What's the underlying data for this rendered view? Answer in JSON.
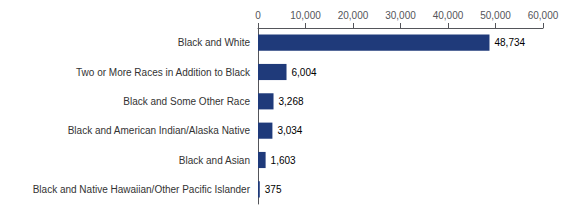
{
  "chart_data": {
    "type": "bar",
    "orientation": "horizontal",
    "categories": [
      "Black and Native Hawaiian/Other Pacific Islander",
      "Black and Asian",
      "Black and American Indian/Alaska Native",
      "Black and Some Other Race",
      "Two or More Races in Addition to Black",
      "Black and White"
    ],
    "values": [
      375,
      1603,
      3034,
      3268,
      6004,
      48734
    ],
    "value_labels": [
      "375",
      "1,603",
      "3,034",
      "3,268",
      "6,004",
      "48,734"
    ],
    "data_labels": true,
    "color": "#1F3A7A",
    "xlim": [
      0,
      60000
    ],
    "xticks": [
      0,
      {
        "value": 10000,
        "label": "10,000"
      },
      {
        "value": 20000,
        "label": "20,000"
      },
      {
        "value": 30000,
        "label": "30,000"
      },
      {
        "value": 40000,
        "label": "40,000"
      },
      {
        "value": 50000,
        "label": "50,000"
      },
      {
        "value": 60000,
        "label": "60,000"
      }
    ],
    "grid": false
  }
}
